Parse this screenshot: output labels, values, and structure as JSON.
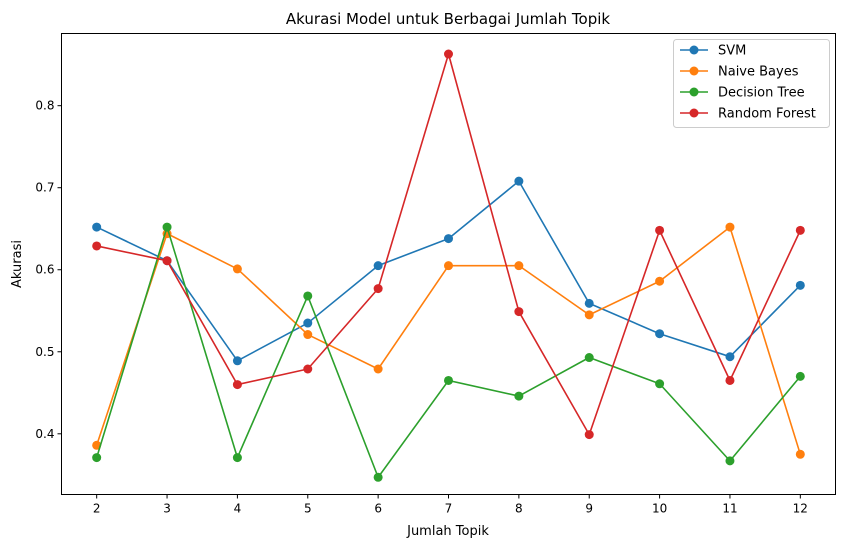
{
  "chart_data": {
    "type": "line",
    "title": "Akurasi Model untuk Berbagai Jumlah Topik",
    "xlabel": "Jumlah Topik",
    "ylabel": "Akurasi",
    "x": [
      2,
      3,
      4,
      5,
      6,
      7,
      8,
      9,
      10,
      11,
      12
    ],
    "x_tick_labels": [
      "2",
      "3",
      "4",
      "5",
      "6",
      "7",
      "8",
      "9",
      "10",
      "11",
      "12"
    ],
    "xlim": [
      1.5,
      12.5
    ],
    "ylim": [
      0.326,
      0.888
    ],
    "y_ticks": [
      0.4,
      0.5,
      0.6,
      0.7,
      0.8
    ],
    "y_tick_labels": [
      "0.4",
      "0.5",
      "0.6",
      "0.7",
      "0.8"
    ],
    "grid": false,
    "legend_position": "top-right",
    "series": [
      {
        "name": "SVM",
        "color": "#1f77b4",
        "values": [
          0.652,
          0.611,
          0.489,
          0.535,
          0.605,
          0.638,
          0.708,
          0.559,
          0.522,
          0.494,
          0.581
        ]
      },
      {
        "name": "Naive Bayes",
        "color": "#ff7f0e",
        "values": [
          0.386,
          0.644,
          0.601,
          0.521,
          0.479,
          0.605,
          0.605,
          0.545,
          0.586,
          0.652,
          0.375
        ]
      },
      {
        "name": "Decision Tree",
        "color": "#2ca02c",
        "values": [
          0.371,
          0.652,
          0.371,
          0.568,
          0.347,
          0.465,
          0.446,
          0.493,
          0.461,
          0.367,
          0.47
        ]
      },
      {
        "name": "Random Forest",
        "color": "#d62728",
        "values": [
          0.629,
          0.611,
          0.46,
          0.479,
          0.577,
          0.863,
          0.549,
          0.399,
          0.648,
          0.465,
          0.648
        ]
      }
    ]
  }
}
